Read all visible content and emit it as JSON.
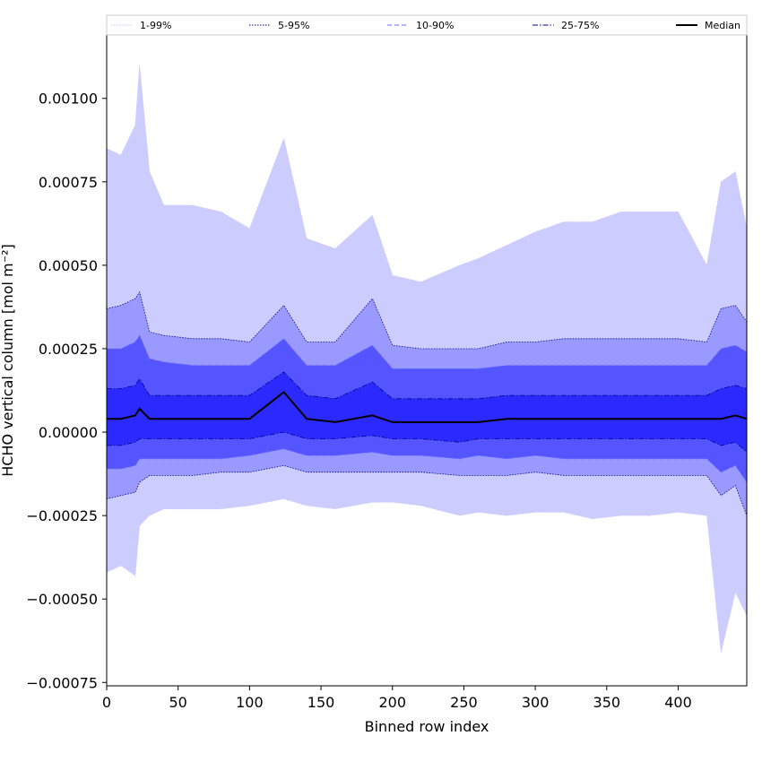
{
  "chart_data": {
    "type": "area",
    "title": "",
    "xlabel": "Binned row index",
    "ylabel": "HCHO vertical column [mol m⁻²]",
    "xlim": [
      0,
      448
    ],
    "ylim": [
      -0.00076,
      0.00119
    ],
    "xticks": [
      0,
      50,
      100,
      150,
      200,
      250,
      300,
      350,
      400
    ],
    "xtick_labels": [
      "0",
      "50",
      "100",
      "150",
      "200",
      "250",
      "300",
      "350",
      "400"
    ],
    "yticks": [
      -0.00075,
      -0.0005,
      -0.00025,
      0,
      0.00025,
      0.0005,
      0.00075,
      0.001
    ],
    "ytick_labels": [
      "−0.00075",
      "−0.00050",
      "−0.00025",
      "0.00000",
      "0.00025",
      "0.00050",
      "0.00075",
      "0.00100"
    ],
    "grid": false,
    "legend_position": "top",
    "x": [
      0,
      10,
      20,
      23,
      30,
      40,
      60,
      80,
      100,
      124,
      140,
      160,
      186,
      200,
      220,
      247,
      260,
      280,
      300,
      320,
      340,
      360,
      380,
      400,
      420,
      430,
      440,
      448
    ],
    "series": [
      {
        "name": "1-99%",
        "style": "dotted",
        "color": "#c8c8ff",
        "upper": [
          0.00085,
          0.00083,
          0.00092,
          0.0011,
          0.00078,
          0.00068,
          0.00068,
          0.00066,
          0.00061,
          0.00088,
          0.00058,
          0.00055,
          0.00065,
          0.00047,
          0.00045,
          0.0005,
          0.00052,
          0.00056,
          0.0006,
          0.00063,
          0.00063,
          0.00066,
          0.00066,
          0.00066,
          0.0005,
          0.00075,
          0.00078,
          0.00061
        ],
        "lower": [
          -0.00042,
          -0.0004,
          -0.00043,
          -0.00028,
          -0.00025,
          -0.00023,
          -0.00023,
          -0.00023,
          -0.00022,
          -0.0002,
          -0.00022,
          -0.00023,
          -0.00021,
          -0.00021,
          -0.00022,
          -0.00025,
          -0.00024,
          -0.00025,
          -0.00024,
          -0.00024,
          -0.00026,
          -0.00025,
          -0.00025,
          -0.00024,
          -0.00025,
          -0.00066,
          -0.00048,
          -0.00055
        ]
      },
      {
        "name": "5-95%",
        "style": "dotted",
        "color": "#00008b",
        "upper": [
          0.00037,
          0.00038,
          0.0004,
          0.00042,
          0.0003,
          0.00029,
          0.00028,
          0.00028,
          0.00027,
          0.00038,
          0.00027,
          0.00027,
          0.0004,
          0.00026,
          0.00025,
          0.00025,
          0.00025,
          0.00027,
          0.00027,
          0.00028,
          0.00028,
          0.00028,
          0.00028,
          0.00028,
          0.00027,
          0.00037,
          0.00038,
          0.00033
        ],
        "lower": [
          -0.0002,
          -0.00019,
          -0.00018,
          -0.00015,
          -0.00013,
          -0.00013,
          -0.00013,
          -0.00012,
          -0.00012,
          -0.0001,
          -0.00012,
          -0.00012,
          -0.00012,
          -0.00012,
          -0.00012,
          -0.00013,
          -0.00013,
          -0.00013,
          -0.00012,
          -0.00013,
          -0.00013,
          -0.00013,
          -0.00013,
          -0.00013,
          -0.00013,
          -0.00019,
          -0.00016,
          -0.00025
        ]
      },
      {
        "name": "10-90%",
        "style": "dashed",
        "color": "#6b6bff",
        "upper": [
          0.00025,
          0.00025,
          0.00027,
          0.00029,
          0.00022,
          0.00021,
          0.0002,
          0.0002,
          0.0002,
          0.00028,
          0.0002,
          0.0002,
          0.00026,
          0.00019,
          0.00019,
          0.00019,
          0.00019,
          0.0002,
          0.0002,
          0.0002,
          0.0002,
          0.0002,
          0.0002,
          0.0002,
          0.0002,
          0.00025,
          0.00026,
          0.00024
        ],
        "lower": [
          -0.00011,
          -0.00011,
          -0.0001,
          -8e-05,
          -8e-05,
          -8e-05,
          -8e-05,
          -8e-05,
          -7e-05,
          -5e-05,
          -7e-05,
          -7e-05,
          -6e-05,
          -7e-05,
          -7e-05,
          -8e-05,
          -7e-05,
          -8e-05,
          -7e-05,
          -8e-05,
          -8e-05,
          -8e-05,
          -8e-05,
          -8e-05,
          -8e-05,
          -0.00012,
          -0.0001,
          -0.00015
        ]
      },
      {
        "name": "25-75%",
        "style": "dashdot",
        "color": "#00008b",
        "upper": [
          0.00013,
          0.00013,
          0.00014,
          0.00016,
          0.00011,
          0.00011,
          0.00011,
          0.00011,
          0.00011,
          0.00018,
          0.00011,
          0.0001,
          0.00015,
          0.0001,
          0.0001,
          0.0001,
          0.0001,
          0.00011,
          0.00011,
          0.00011,
          0.00011,
          0.00011,
          0.00011,
          0.00011,
          0.00011,
          0.00013,
          0.00014,
          0.00013
        ],
        "lower": [
          -4e-05,
          -4e-05,
          -3e-05,
          -2e-05,
          -2e-05,
          -2e-05,
          -2e-05,
          -2e-05,
          -2e-05,
          0.0,
          -2e-05,
          -2e-05,
          -1e-05,
          -2e-05,
          -2e-05,
          -3e-05,
          -2e-05,
          -2e-05,
          -2e-05,
          -2e-05,
          -2e-05,
          -2e-05,
          -2e-05,
          -2e-05,
          -2e-05,
          -4e-05,
          -3e-05,
          -6e-05
        ]
      },
      {
        "name": "Median",
        "style": "solid",
        "color": "#000000",
        "values": [
          4e-05,
          4e-05,
          5e-05,
          7e-05,
          4e-05,
          4e-05,
          4e-05,
          4e-05,
          4e-05,
          0.00012,
          4e-05,
          3e-05,
          5e-05,
          3e-05,
          3e-05,
          3e-05,
          3e-05,
          4e-05,
          4e-05,
          4e-05,
          4e-05,
          4e-05,
          4e-05,
          4e-05,
          4e-05,
          4e-05,
          5e-05,
          4e-05
        ]
      }
    ],
    "band_fills": {
      "1-99%": "#ccccff",
      "5-95%": "#9999ff",
      "10-90%": "#5555ff",
      "25-75%": "#2a2aff"
    }
  }
}
